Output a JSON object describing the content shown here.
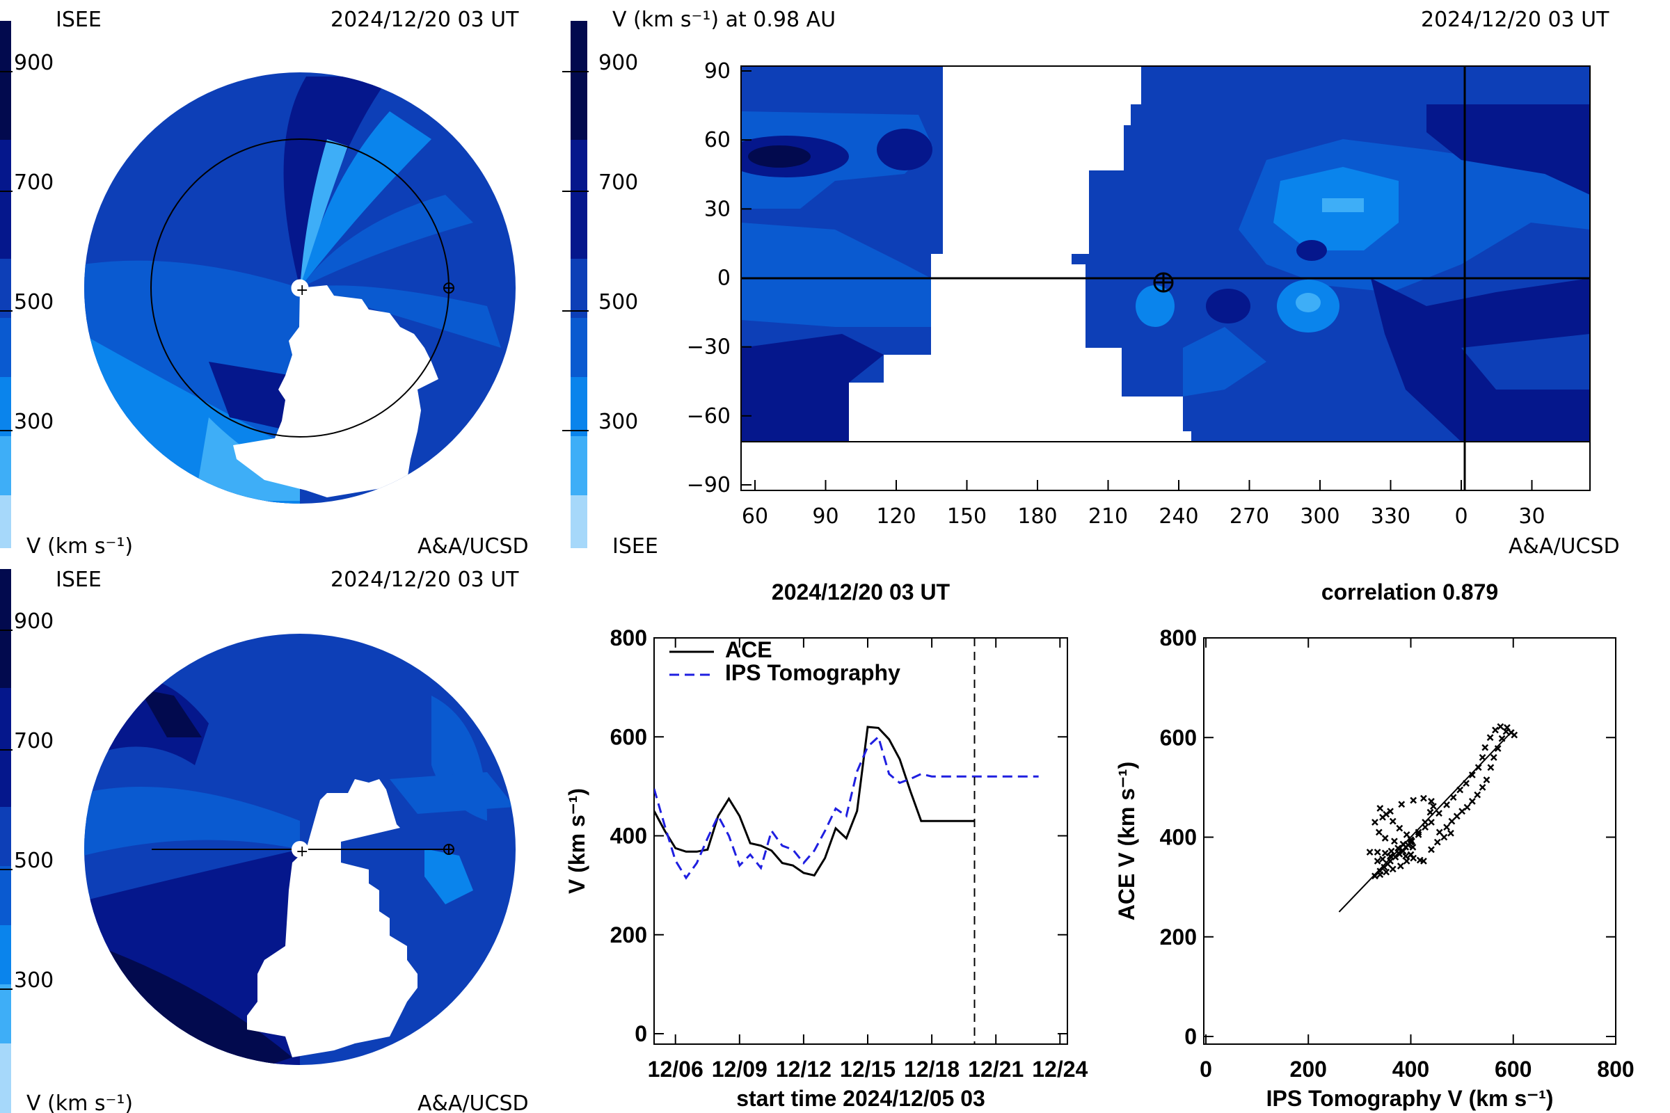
{
  "colors": {
    "bands": [
      "#a6d8fa",
      "#3eaef7",
      "#0a84ec",
      "#0a5ad0",
      "#0d3fb7",
      "#05178c",
      "#020a4e"
    ],
    "ace_line": "#000000",
    "ips_line": "#1f1fe0",
    "earth_marker": "#000000"
  },
  "panel_tl": {
    "org": "ISEE",
    "timestamp": "2024/12/20 03 UT",
    "credit": "A&A/UCSD",
    "colorbar_ticks": [
      "900",
      "700",
      "500",
      "300"
    ],
    "colorbar_label": "V (km s⁻¹)"
  },
  "panel_tr": {
    "header": "V (km s⁻¹) at 0.98 AU",
    "timestamp": "2024/12/20 03 UT",
    "org": "ISEE",
    "credit": "A&A/UCSD",
    "colorbar_ticks": [
      "900",
      "700",
      "500",
      "300"
    ],
    "y_ticks": [
      "90",
      "60",
      "30",
      "0",
      "−30",
      "−60",
      "−90"
    ],
    "x_ticks": [
      "60",
      "90",
      "120",
      "150",
      "180",
      "210",
      "240",
      "270",
      "300",
      "330",
      "0",
      "30"
    ]
  },
  "panel_bl": {
    "org": "ISEE",
    "timestamp": "2024/12/20 03 UT",
    "credit": "A&A/UCSD",
    "colorbar_ticks": [
      "900",
      "700",
      "500",
      "300"
    ],
    "colorbar_label": "V (km s⁻¹)"
  },
  "chart_data": [
    {
      "type": "line",
      "title": "2024/12/20 03 UT",
      "xlabel": "start time 2024/12/05 03",
      "ylabel": "V (km s⁻¹)",
      "ylim": [
        0,
        800
      ],
      "xlim": [
        0,
        19.5
      ],
      "x_ticks": [
        "12/06",
        "12/09",
        "12/12",
        "12/15",
        "12/18",
        "12/21",
        "12/24"
      ],
      "y_ticks": [
        "0",
        "200",
        "400",
        "600",
        "800"
      ],
      "legend": "top-left",
      "vline_x": 15,
      "series": [
        {
          "name": "ACE",
          "style": "solid",
          "x": [
            0,
            0.5,
            1,
            1.5,
            2,
            2.5,
            3,
            3.5,
            4,
            4.5,
            5,
            5.5,
            6,
            6.5,
            7,
            7.5,
            8,
            8.5,
            9,
            9.5,
            10,
            10.5,
            11,
            11.5,
            12,
            12.5,
            13,
            13.5,
            14,
            14.5,
            15
          ],
          "values": [
            450,
            410,
            375,
            368,
            368,
            372,
            440,
            475,
            440,
            385,
            380,
            370,
            345,
            340,
            325,
            320,
            355,
            415,
            395,
            450,
            620,
            618,
            595,
            555,
            490,
            430,
            430,
            430,
            430,
            430,
            430
          ]
        },
        {
          "name": "IPS Tomography",
          "style": "dashed",
          "x": [
            0,
            0.5,
            1,
            1.5,
            2,
            2.5,
            3,
            3.5,
            4,
            4.5,
            5,
            5.5,
            6,
            6.5,
            7,
            7.5,
            8,
            8.5,
            9,
            9.5,
            10,
            10.5,
            11,
            11.5,
            12,
            12.5,
            13,
            13.5,
            14,
            14.5,
            15,
            15.5,
            16,
            16.5,
            17,
            17.5,
            18
          ],
          "values": [
            495,
            420,
            350,
            315,
            345,
            395,
            440,
            400,
            340,
            362,
            335,
            410,
            380,
            372,
            345,
            370,
            410,
            455,
            440,
            530,
            580,
            600,
            525,
            507,
            515,
            525,
            520,
            520,
            520,
            520,
            520,
            520,
            520,
            520,
            520,
            520,
            520
          ]
        }
      ]
    },
    {
      "type": "scatter",
      "title": "correlation 0.879",
      "xlabel": "IPS Tomography V (km s⁻¹)",
      "ylabel": "ACE V (km s⁻¹)",
      "xlim": [
        0,
        800
      ],
      "ylim": [
        0,
        800
      ],
      "x_ticks": [
        "0",
        "200",
        "400",
        "600",
        "800"
      ],
      "y_ticks": [
        "0",
        "200",
        "400",
        "600",
        "800"
      ],
      "fit_line": [
        [
          260,
          250
        ],
        [
          600,
          615
        ]
      ],
      "points": [
        [
          320,
          370
        ],
        [
          335,
          370
        ],
        [
          350,
          368
        ],
        [
          362,
          372
        ],
        [
          378,
          366
        ],
        [
          390,
          362
        ],
        [
          405,
          358
        ],
        [
          418,
          354
        ],
        [
          425,
          352
        ],
        [
          330,
          322
        ],
        [
          340,
          325
        ],
        [
          352,
          330
        ],
        [
          365,
          336
        ],
        [
          380,
          342
        ],
        [
          392,
          352
        ],
        [
          400,
          365
        ],
        [
          404,
          380
        ],
        [
          400,
          395
        ],
        [
          392,
          405
        ],
        [
          378,
          418
        ],
        [
          365,
          432
        ],
        [
          352,
          446
        ],
        [
          340,
          458
        ],
        [
          330,
          430
        ],
        [
          338,
          410
        ],
        [
          350,
          398
        ],
        [
          368,
          392
        ],
        [
          385,
          386
        ],
        [
          400,
          390
        ],
        [
          415,
          410
        ],
        [
          428,
          430
        ],
        [
          438,
          450
        ],
        [
          444,
          462
        ],
        [
          440,
          472
        ],
        [
          425,
          478
        ],
        [
          405,
          474
        ],
        [
          382,
          466
        ],
        [
          360,
          452
        ],
        [
          345,
          440
        ],
        [
          456,
          410
        ],
        [
          470,
          420
        ],
        [
          480,
          432
        ],
        [
          490,
          442
        ],
        [
          500,
          452
        ],
        [
          510,
          460
        ],
        [
          520,
          472
        ],
        [
          530,
          485
        ],
        [
          540,
          500
        ],
        [
          548,
          515
        ],
        [
          556,
          540
        ],
        [
          562,
          560
        ],
        [
          570,
          578
        ],
        [
          578,
          598
        ],
        [
          586,
          612
        ],
        [
          596,
          610
        ],
        [
          602,
          605
        ],
        [
          588,
          620
        ],
        [
          575,
          622
        ],
        [
          565,
          615
        ],
        [
          555,
          600
        ],
        [
          545,
          580
        ],
        [
          540,
          560
        ],
        [
          532,
          540
        ],
        [
          520,
          525
        ],
        [
          508,
          508
        ],
        [
          496,
          495
        ],
        [
          483,
          480
        ],
        [
          470,
          465
        ],
        [
          455,
          448
        ],
        [
          440,
          430
        ],
        [
          428,
          420
        ],
        [
          415,
          405
        ],
        [
          402,
          392
        ],
        [
          390,
          380
        ],
        [
          376,
          368
        ],
        [
          360,
          352
        ],
        [
          348,
          340
        ],
        [
          340,
          332
        ],
        [
          355,
          346
        ],
        [
          370,
          360
        ],
        [
          385,
          372
        ],
        [
          395,
          384
        ],
        [
          440,
          375
        ],
        [
          452,
          390
        ],
        [
          465,
          400
        ],
        [
          478,
          408
        ],
        [
          335,
          352
        ],
        [
          345,
          356
        ],
        [
          360,
          362
        ],
        [
          375,
          378
        ]
      ]
    }
  ]
}
